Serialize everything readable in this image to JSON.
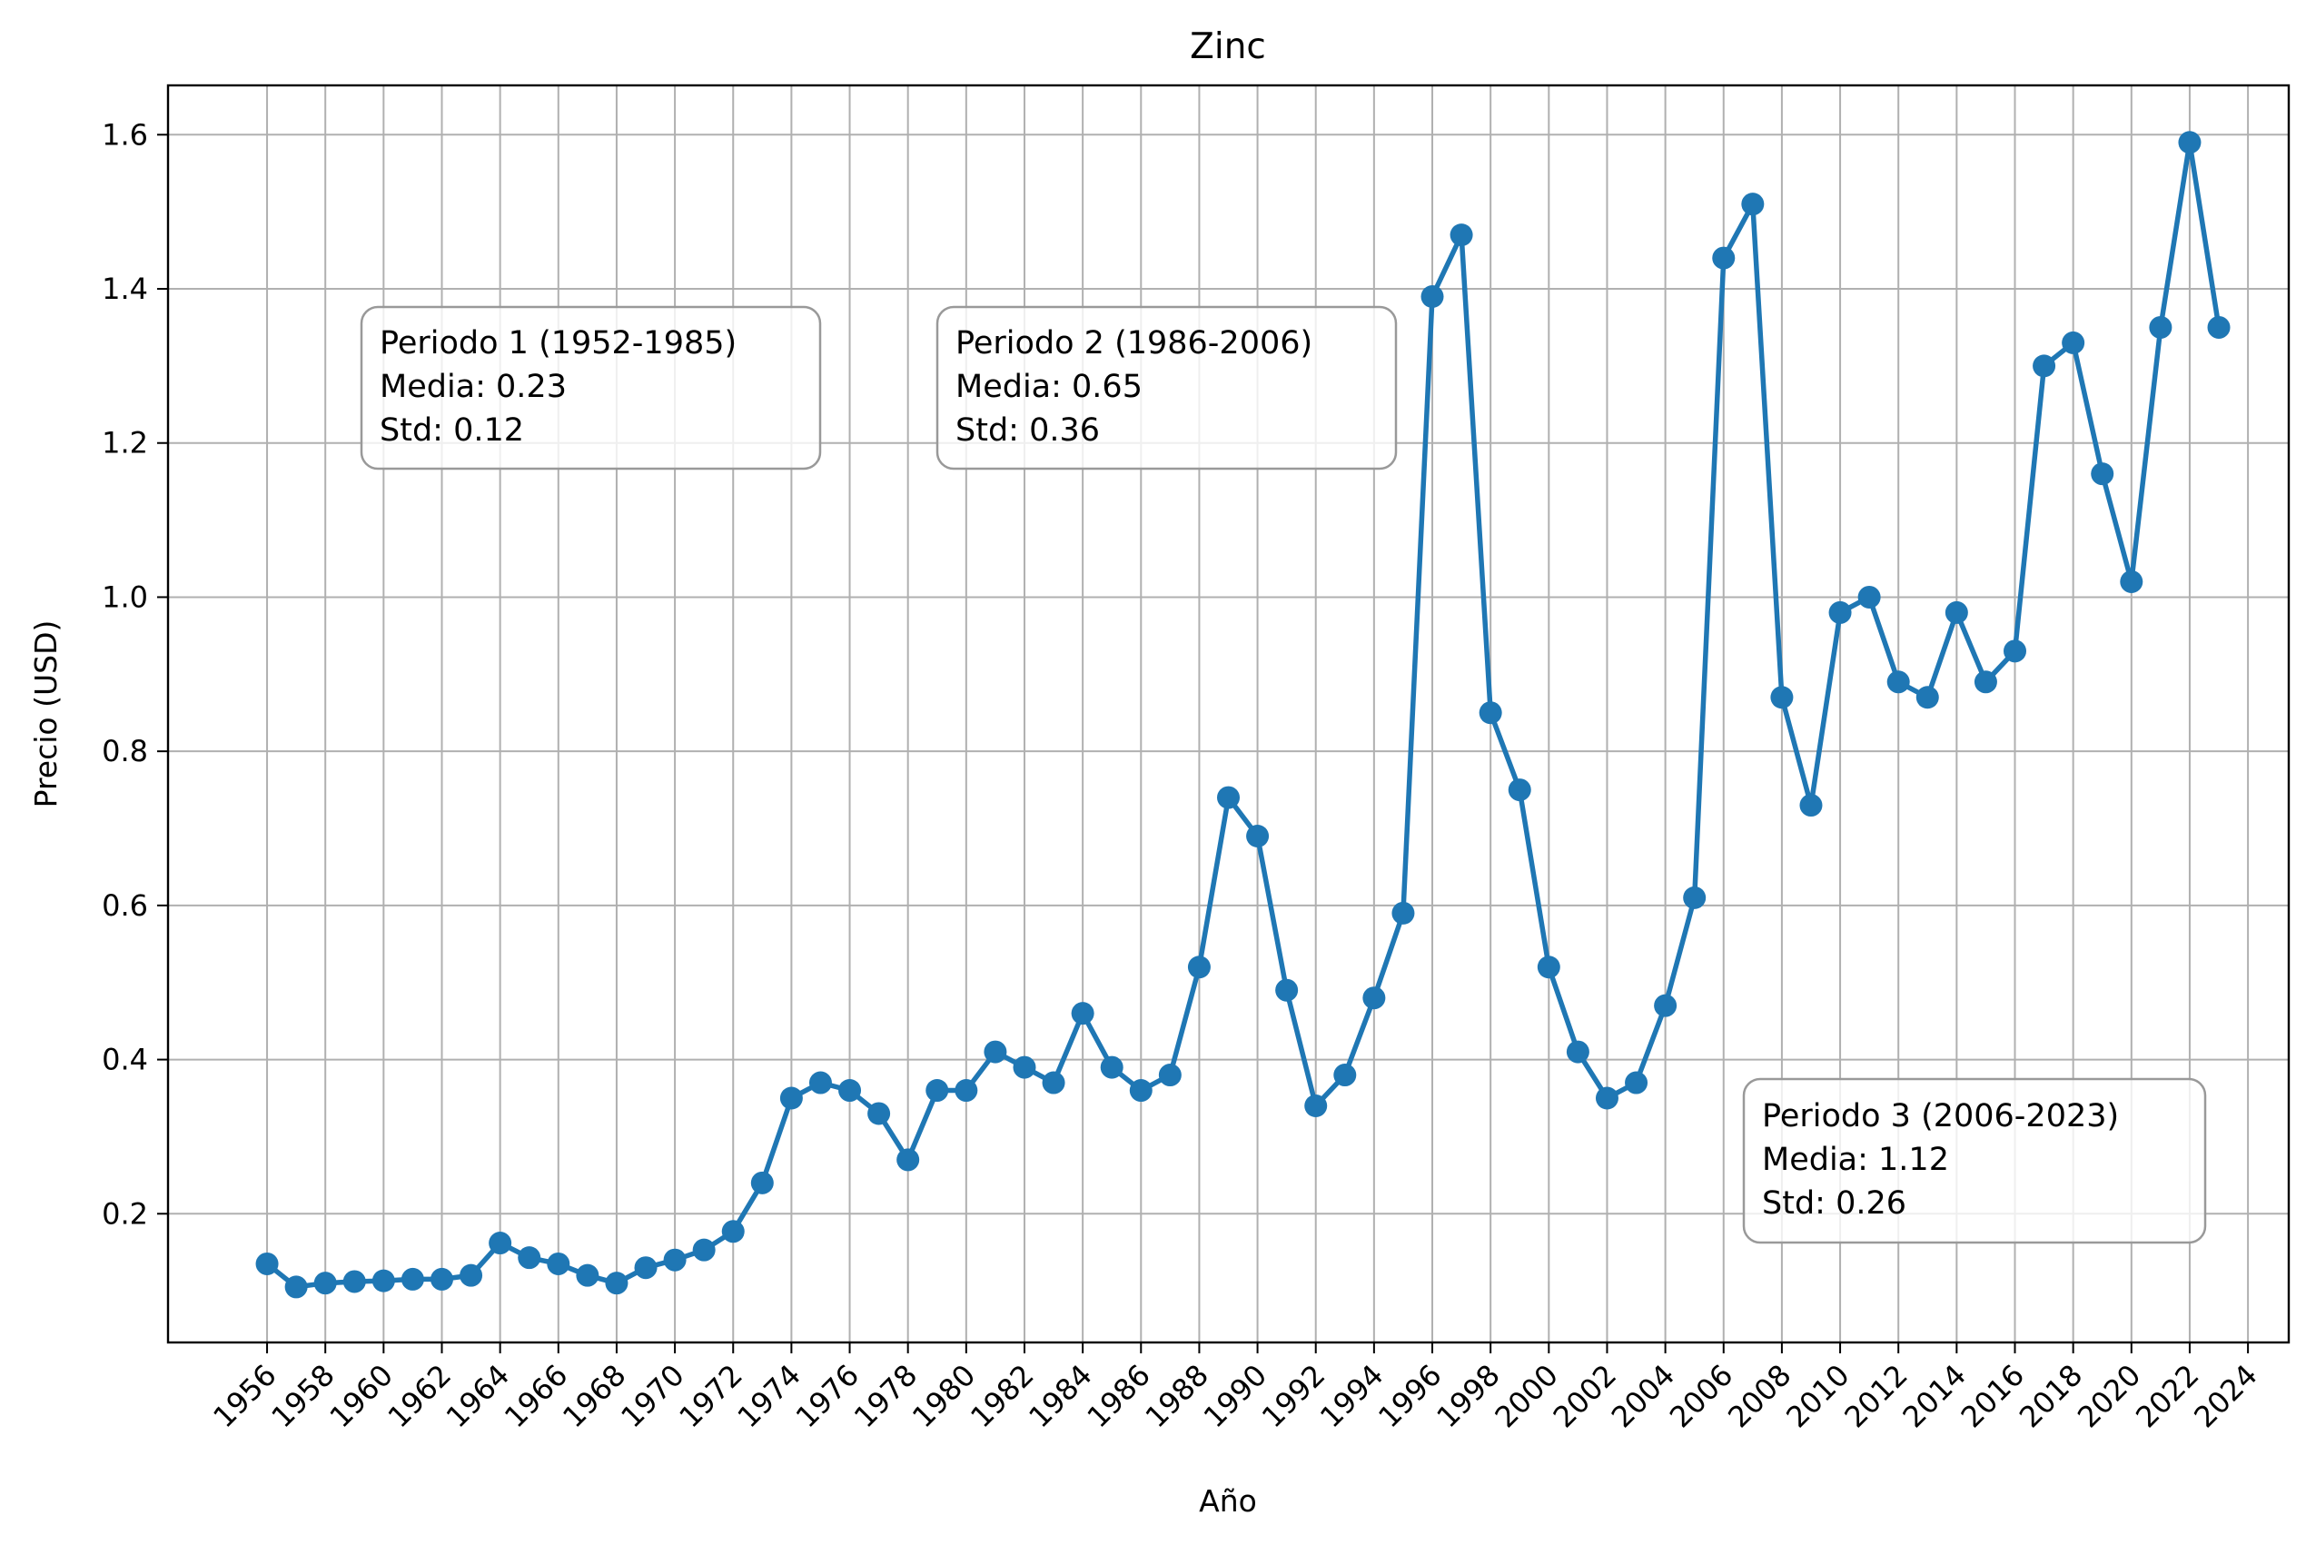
{
  "chart_data": {
    "type": "line",
    "title": "Zinc",
    "xlabel": "Año",
    "ylabel": "Precio (USD)",
    "xlim": [
      1952.6,
      2025.4
    ],
    "ylim": [
      0.033,
      1.664
    ],
    "grid": true,
    "line_color": "#1f77b4",
    "x_ticks": [
      1956,
      1958,
      1960,
      1962,
      1964,
      1966,
      1968,
      1970,
      1972,
      1974,
      1976,
      1978,
      1980,
      1982,
      1984,
      1986,
      1988,
      1990,
      1992,
      1994,
      1996,
      1998,
      2000,
      2002,
      2004,
      2006,
      2008,
      2010,
      2012,
      2014,
      2016,
      2018,
      2020,
      2022,
      2024
    ],
    "x_tick_labels": [
      "1956",
      "1958",
      "1960",
      "1962",
      "1964",
      "1966",
      "1968",
      "1970",
      "1972",
      "1974",
      "1976",
      "1978",
      "1980",
      "1982",
      "1984",
      "1986",
      "1988",
      "1990",
      "1992",
      "1994",
      "1996",
      "1998",
      "2000",
      "2002",
      "2004",
      "2006",
      "2008",
      "2010",
      "2012",
      "2014",
      "2016",
      "2018",
      "2020",
      "2022",
      "2024"
    ],
    "y_ticks": [
      0.2,
      0.4,
      0.6,
      0.8,
      1.0,
      1.2,
      1.4,
      1.6
    ],
    "y_tick_labels": [
      "0.2",
      "0.4",
      "0.6",
      "0.8",
      "1.0",
      "1.2",
      "1.4",
      "1.6"
    ],
    "x": [
      1956,
      1957,
      1958,
      1959,
      1960,
      1961,
      1962,
      1963,
      1964,
      1965,
      1966,
      1967,
      1968,
      1969,
      1970,
      1971,
      1972,
      1973,
      1974,
      1975,
      1976,
      1977,
      1978,
      1979,
      1980,
      1981,
      1982,
      1983,
      1984,
      1985,
      1986,
      1987,
      1988,
      1989,
      1990,
      1991,
      1992,
      1993,
      1994,
      1995,
      1996,
      1997,
      1998,
      1999,
      2000,
      2001,
      2002,
      2003,
      2004,
      2005,
      2006,
      2007,
      2008,
      2009,
      2010,
      2011,
      2012,
      2013,
      2014,
      2015,
      2016,
      2017,
      2018,
      2019,
      2020,
      2021,
      2022,
      2023
    ],
    "y": [
      0.135,
      0.105,
      0.11,
      0.112,
      0.113,
      0.115,
      0.115,
      0.12,
      0.162,
      0.143,
      0.135,
      0.12,
      0.11,
      0.13,
      0.14,
      0.153,
      0.177,
      0.24,
      0.35,
      0.37,
      0.36,
      0.33,
      0.27,
      0.36,
      0.36,
      0.41,
      0.39,
      0.37,
      0.46,
      0.39,
      0.36,
      0.38,
      0.52,
      0.74,
      0.69,
      0.49,
      0.34,
      0.38,
      0.48,
      0.59,
      1.39,
      1.47,
      0.85,
      0.75,
      0.52,
      0.41,
      0.35,
      0.37,
      0.47,
      0.61,
      1.44,
      1.51,
      0.87,
      0.73,
      0.98,
      1.0,
      0.89,
      0.87,
      0.98,
      0.89,
      0.93,
      1.3,
      1.33,
      1.16,
      1.02,
      1.35,
      1.59,
      1.35
    ],
    "annotations": [
      {
        "lines": [
          "Periodo 1 (1952-1985)",
          "Media: 0.23",
          "Std: 0.12"
        ]
      },
      {
        "lines": [
          "Periodo 2 (1986-2006)",
          "Media: 0.65",
          "Std: 0.36"
        ]
      },
      {
        "lines": [
          "Periodo 3 (2006-2023)",
          "Media: 1.12",
          "Std: 0.26"
        ]
      }
    ]
  }
}
